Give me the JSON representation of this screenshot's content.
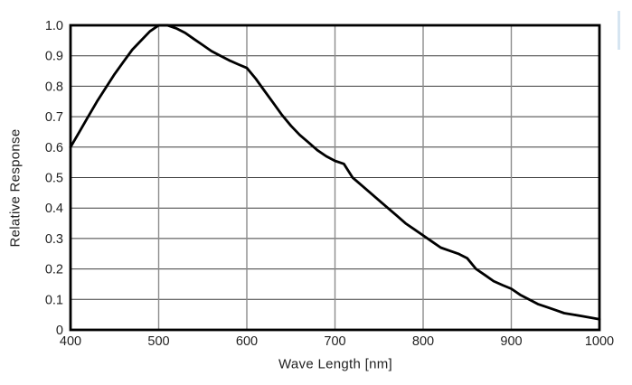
{
  "page": {
    "background": "#ffffff"
  },
  "chart_data": {
    "type": "line",
    "title": "",
    "xlabel": "Wave Length [nm]",
    "ylabel": "Relative Response",
    "xlim": [
      400,
      1000
    ],
    "ylim": [
      0,
      1.0
    ],
    "grid": true,
    "legend": "none",
    "x_ticks": [
      {
        "value": 400,
        "label": "400"
      },
      {
        "value": 500,
        "label": "500"
      },
      {
        "value": 600,
        "label": "600"
      },
      {
        "value": 700,
        "label": "700"
      },
      {
        "value": 800,
        "label": "800"
      },
      {
        "value": 900,
        "label": "900"
      },
      {
        "value": 1000,
        "label": "1000"
      }
    ],
    "y_ticks": [
      {
        "value": 0,
        "label": "0"
      },
      {
        "value": 0.1,
        "label": "0.1"
      },
      {
        "value": 0.2,
        "label": "0.2"
      },
      {
        "value": 0.3,
        "label": "0.3"
      },
      {
        "value": 0.4,
        "label": "0.4"
      },
      {
        "value": 0.5,
        "label": "0.5"
      },
      {
        "value": 0.6,
        "label": "0.6"
      },
      {
        "value": 0.7,
        "label": "0.7"
      },
      {
        "value": 0.8,
        "label": "0.8"
      },
      {
        "value": 0.9,
        "label": "0.9"
      },
      {
        "value": 1.0,
        "label": "1.0"
      }
    ],
    "series": [
      {
        "name": "relative_response",
        "x": [
          400,
          410,
          420,
          430,
          440,
          450,
          460,
          470,
          480,
          490,
          500,
          510,
          520,
          530,
          540,
          550,
          560,
          570,
          580,
          590,
          600,
          610,
          620,
          630,
          640,
          650,
          660,
          670,
          680,
          690,
          700,
          710,
          720,
          730,
          740,
          750,
          760,
          770,
          780,
          790,
          800,
          810,
          820,
          830,
          840,
          850,
          860,
          870,
          880,
          890,
          900,
          910,
          920,
          930,
          940,
          950,
          960,
          970,
          980,
          990,
          1000
        ],
        "y": [
          0.6,
          0.65,
          0.7,
          0.75,
          0.795,
          0.84,
          0.88,
          0.92,
          0.95,
          0.98,
          1.0,
          1.0,
          0.99,
          0.975,
          0.955,
          0.935,
          0.915,
          0.9,
          0.885,
          0.872,
          0.86,
          0.825,
          0.785,
          0.745,
          0.705,
          0.67,
          0.64,
          0.615,
          0.59,
          0.57,
          0.555,
          0.545,
          0.5,
          0.475,
          0.45,
          0.425,
          0.4,
          0.375,
          0.35,
          0.33,
          0.31,
          0.29,
          0.27,
          0.26,
          0.25,
          0.235,
          0.2,
          0.18,
          0.16,
          0.147,
          0.135,
          0.115,
          0.1,
          0.085,
          0.075,
          0.065,
          0.055,
          0.05,
          0.045,
          0.04,
          0.035
        ]
      }
    ],
    "colors": {
      "curve": "#000000",
      "frame": "#000000",
      "h_grid": "#3d3d3d",
      "v_grid": "#8c8c8c",
      "text": "#1f1f1f"
    }
  },
  "artifact": {
    "name": "scan-artifact",
    "color": "#cfe0ee"
  }
}
